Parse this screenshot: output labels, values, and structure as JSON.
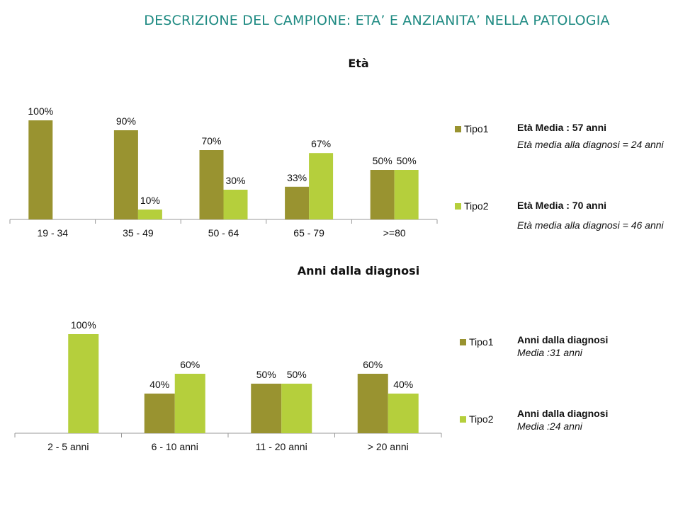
{
  "page": {
    "title": "DESCRIZIONE DEL CAMPIONE: ETA’ E ANZIANITA’ NELLA PATOLOGIA"
  },
  "colors": {
    "tipo1": "#999330",
    "tipo2": "#b5cf3c",
    "axis": "#9a9a9a",
    "title": "#1e8a82"
  },
  "chart_data": [
    {
      "type": "bar",
      "title": "Età",
      "categories": [
        "19 - 34",
        "35 - 49",
        "50 - 64",
        "65 - 79",
        ">=80"
      ],
      "ylim": [
        0,
        100
      ],
      "legend_position": "right",
      "series": [
        {
          "name": "Tipo1",
          "values": [
            100,
            90,
            70,
            33,
            50
          ],
          "labels": [
            "100%",
            "90%",
            "70%",
            "33%",
            "50%"
          ]
        },
        {
          "name": "Tipo2",
          "values": [
            0,
            10,
            30,
            67,
            50
          ],
          "labels": [
            "",
            "10%",
            "30%",
            "67%",
            "50%"
          ]
        }
      ]
    },
    {
      "type": "bar",
      "title": "Anni dalla diagnosi",
      "categories": [
        "2 - 5 anni",
        "6 - 10 anni",
        "11 - 20 anni",
        "> 20 anni"
      ],
      "ylim": [
        0,
        100
      ],
      "legend_position": "right",
      "series": [
        {
          "name": "Tipo1",
          "values": [
            0,
            40,
            50,
            60
          ],
          "labels": [
            "",
            "40%",
            "50%",
            "60%"
          ]
        },
        {
          "name": "Tipo2",
          "values": [
            100,
            60,
            50,
            40
          ],
          "labels": [
            "100%",
            "60%",
            "50%",
            "40%"
          ]
        }
      ]
    }
  ],
  "notes": {
    "age_tipo1": {
      "bold": "Età Media : 57 anni",
      "italic": "Età media alla diagnosi = 24 anni"
    },
    "age_tipo2": {
      "bold": "Età Media : 70 anni",
      "italic": "Età media alla diagnosi = 46 anni"
    },
    "diag_tipo1": {
      "bold": "Anni dalla diagnosi",
      "italic": "Media :31 anni"
    },
    "diag_tipo2": {
      "bold": "Anni dalla diagnosi",
      "italic": "Media :24 anni"
    }
  }
}
